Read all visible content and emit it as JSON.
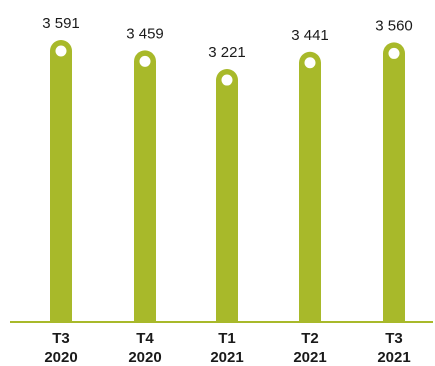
{
  "chart_data": {
    "type": "bar",
    "categories": [
      [
        "T3",
        "2020"
      ],
      [
        "T4",
        "2020"
      ],
      [
        "T1",
        "2021"
      ],
      [
        "T2",
        "2021"
      ],
      [
        "T3",
        "2021"
      ]
    ],
    "values": [
      3591,
      3459,
      3221,
      3441,
      3560
    ],
    "value_labels": [
      "3 591",
      "3 459",
      "3 221",
      "3 441",
      "3 560"
    ],
    "title": "",
    "xlabel": "",
    "ylabel": "",
    "ylim": [
      0,
      3591
    ],
    "grid": false,
    "legend": "none",
    "bar_color": "#a8b92a",
    "marker_fill": "#ffffff",
    "axis_color": "#a8b92a",
    "text_color": "#1a1a1a"
  }
}
